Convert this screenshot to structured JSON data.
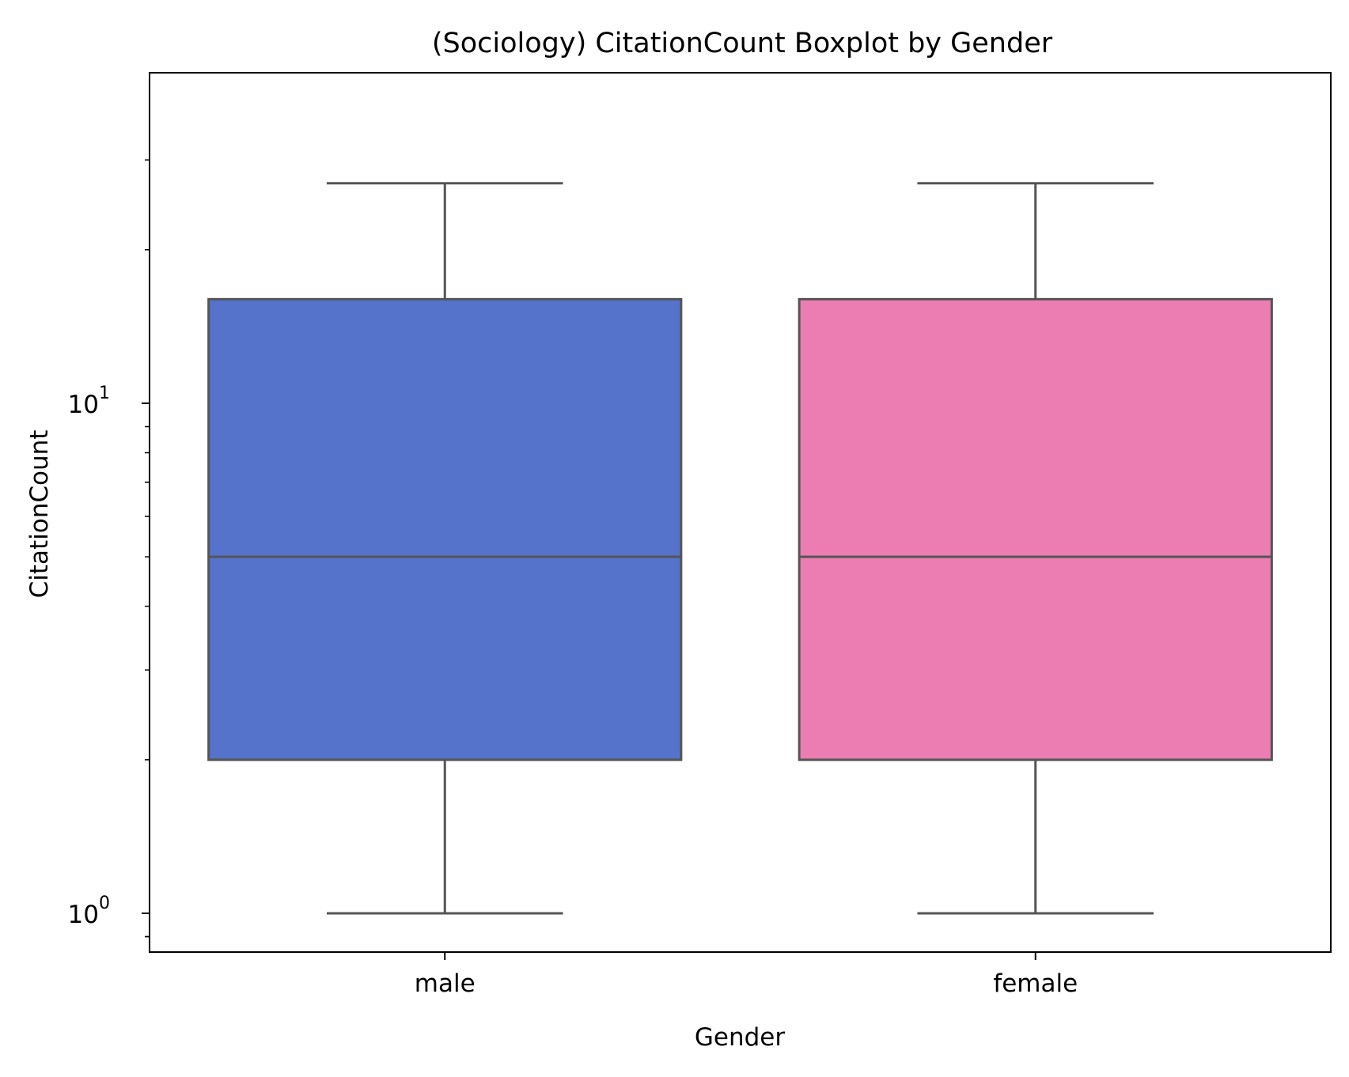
{
  "chart_data": {
    "type": "box",
    "title": "(Sociology) CitationCount Boxplot by Gender",
    "xlabel": "Gender",
    "ylabel": "CitationCount",
    "yscale": "log",
    "ylim": [
      0.9,
      35
    ],
    "yticks": [
      {
        "value": 1,
        "base": "10",
        "exp": "0"
      },
      {
        "value": 10,
        "base": "10",
        "exp": "1"
      }
    ],
    "categories": [
      "male",
      "female"
    ],
    "boxes": [
      {
        "name": "male",
        "whisker_low": 1,
        "q1": 2,
        "median": 5,
        "q3": 16,
        "whisker_high": 27,
        "color": "#5573CB"
      },
      {
        "name": "female",
        "whisker_low": 1,
        "q1": 2,
        "median": 5,
        "q3": 16,
        "whisker_high": 27,
        "color": "#EC7DB2"
      }
    ],
    "line_color": "#555555",
    "grid": false,
    "legend": "none"
  }
}
